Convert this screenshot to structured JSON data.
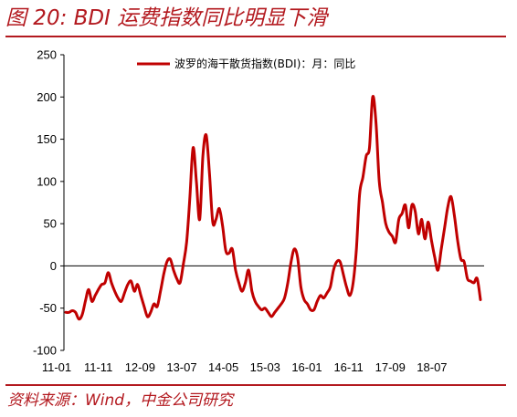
{
  "title": "图 20: BDI 运费指数同比明显下滑",
  "source": "资料来源：Wind，中金公司研究",
  "colors": {
    "accent": "#b3191f",
    "line": "#c00000"
  },
  "chart_data": {
    "type": "line",
    "title": "",
    "xlabel": "",
    "ylabel": "",
    "ylim": [
      -100,
      250
    ],
    "yticks": [
      -100,
      -50,
      0,
      50,
      100,
      150,
      200,
      250
    ],
    "xtick_labels": [
      "11-01",
      "11-11",
      "12-09",
      "13-07",
      "14-05",
      "15-03",
      "16-01",
      "16-11",
      "17-09",
      "18-07"
    ],
    "grid": false,
    "legend_position": "top-center",
    "series": [
      {
        "name": "波罗的海干散货指数(BDI)：月：同比",
        "values": [
          -55,
          -55,
          -53,
          -55,
          -63,
          -58,
          -42,
          -28,
          -42,
          -35,
          -28,
          -22,
          -20,
          -8,
          -20,
          -30,
          -38,
          -42,
          -32,
          -22,
          -18,
          -30,
          -22,
          -35,
          -48,
          -60,
          -55,
          -45,
          -48,
          -30,
          -10,
          5,
          8,
          -5,
          -15,
          -20,
          2,
          28,
          80,
          140,
          100,
          55,
          130,
          155,
          110,
          52,
          55,
          68,
          48,
          18,
          15,
          20,
          -5,
          -20,
          -30,
          -20,
          -5,
          -30,
          -42,
          -48,
          -52,
          -50,
          -55,
          -60,
          -55,
          -50,
          -45,
          -38,
          -20,
          5,
          20,
          10,
          -25,
          -40,
          -45,
          -52,
          -52,
          -42,
          -35,
          -38,
          -32,
          -25,
          -5,
          5,
          5,
          -10,
          -25,
          -35,
          -20,
          20,
          85,
          105,
          130,
          140,
          200,
          170,
          100,
          75,
          50,
          40,
          35,
          28,
          55,
          62,
          72,
          45,
          72,
          65,
          38,
          55,
          32,
          52,
          30,
          10,
          -5,
          20,
          45,
          70,
          82,
          60,
          30,
          8,
          5,
          -15,
          -18,
          -20,
          -15,
          -40
        ]
      }
    ]
  }
}
